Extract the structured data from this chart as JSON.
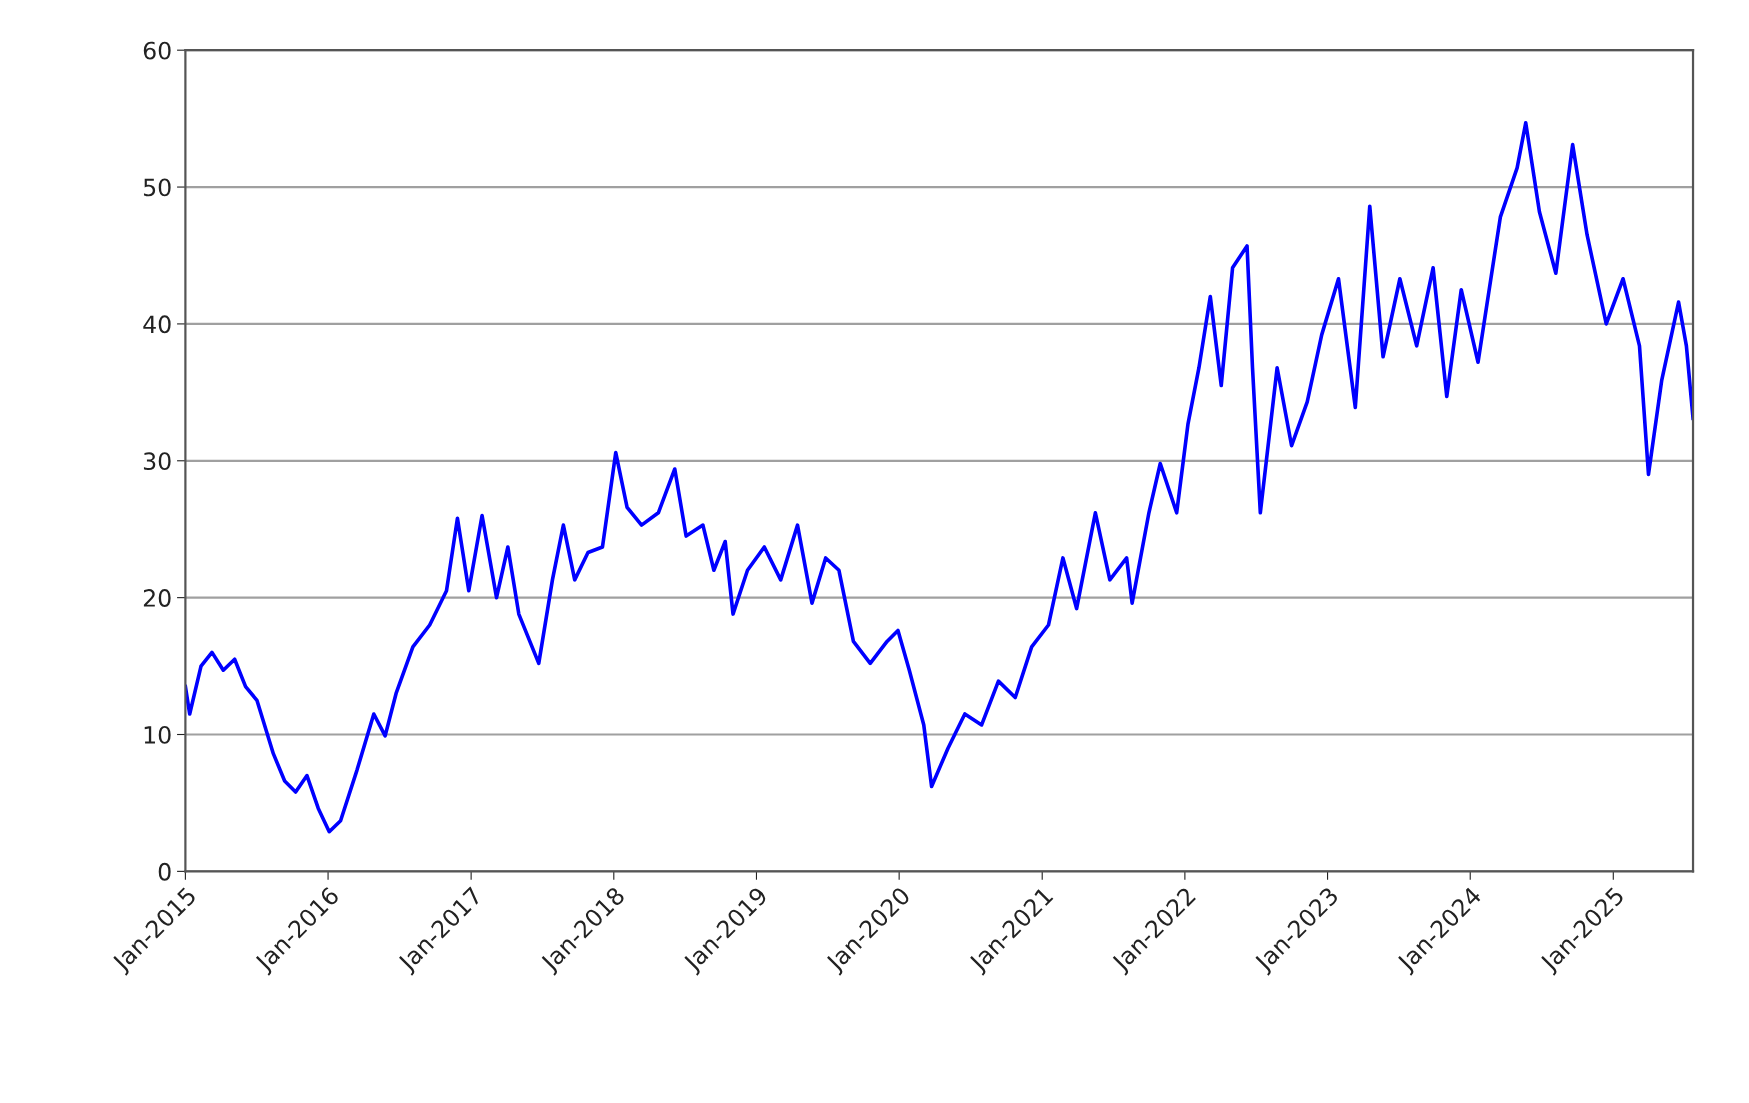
{
  "chart_data": {
    "type": "line",
    "x": [
      "2015-01-01",
      "2015-01-12",
      "2015-02-10",
      "2015-03-10",
      "2015-04-08",
      "2015-05-07",
      "2015-06-04",
      "2015-07-03",
      "2015-08-14",
      "2015-09-12",
      "2015-10-10",
      "2015-11-08",
      "2015-12-07",
      "2016-01-04",
      "2016-02-02",
      "2016-03-15",
      "2016-04-27",
      "2016-05-26",
      "2016-06-23",
      "2016-08-05",
      "2016-09-17",
      "2016-10-30",
      "2016-11-27",
      "2016-12-26",
      "2017-01-29",
      "2017-03-07",
      "2017-04-05",
      "2017-05-03",
      "2017-06-23",
      "2017-07-28",
      "2017-08-25",
      "2017-09-23",
      "2017-10-27",
      "2017-12-03",
      "2018-01-06",
      "2018-02-04",
      "2018-03-13",
      "2018-04-25",
      "2018-06-06",
      "2018-07-05",
      "2018-08-17",
      "2018-09-14",
      "2018-10-13",
      "2018-11-02",
      "2018-12-09",
      "2019-01-21",
      "2019-03-04",
      "2019-04-16",
      "2019-05-23",
      "2019-06-27",
      "2019-07-31",
      "2019-09-06",
      "2019-10-19",
      "2019-12-01",
      "2019-12-29",
      "2020-01-27",
      "2020-03-04",
      "2020-03-24",
      "2020-05-05",
      "2020-06-17",
      "2020-07-30",
      "2020-09-11",
      "2020-10-24",
      "2020-12-05",
      "2021-01-17",
      "2021-02-23",
      "2021-03-30",
      "2021-05-17",
      "2021-06-23",
      "2021-08-05",
      "2021-08-19",
      "2021-10-01",
      "2021-10-30",
      "2021-12-11",
      "2022-01-09",
      "2022-02-06",
      "2022-03-07",
      "2022-04-04",
      "2022-05-03",
      "2022-06-09",
      "2022-06-23",
      "2022-07-13",
      "2022-08-25",
      "2022-10-01",
      "2022-11-10",
      "2022-12-17",
      "2023-01-29",
      "2023-03-13",
      "2023-04-19",
      "2023-05-23",
      "2023-07-05",
      "2023-08-17",
      "2023-09-28",
      "2023-11-02",
      "2023-12-09",
      "2024-01-21",
      "2024-03-18",
      "2024-04-30",
      "2024-05-22",
      "2024-06-26",
      "2024-08-07",
      "2024-09-19",
      "2024-10-26",
      "2024-12-14",
      "2025-01-26",
      "2025-03-09",
      "2025-04-01",
      "2025-05-05",
      "2025-06-17",
      "2025-07-07",
      "2025-07-24"
    ],
    "series": [
      {
        "color": "#0000ff",
        "values": [
          13.5,
          11.5,
          15,
          16,
          14.7,
          15.5,
          13.5,
          12.5,
          8.6,
          6.6,
          5.8,
          7,
          4.6,
          2.9,
          3.7,
          7.4,
          11.5,
          9.9,
          13,
          16.4,
          18,
          20.5,
          25.8,
          20.5,
          26,
          20,
          23.7,
          18.8,
          15.2,
          21.3,
          25.3,
          21.3,
          23.3,
          23.7,
          30.6,
          26.6,
          25.3,
          26.2,
          29.4,
          24.5,
          25.3,
          22,
          24.1,
          18.8,
          22,
          23.7,
          21.3,
          25.3,
          19.6,
          22.9,
          22,
          16.8,
          15.2,
          16.8,
          17.6,
          14.7,
          10.7,
          6.2,
          9,
          11.5,
          10.7,
          13.9,
          12.7,
          16.4,
          18,
          22.9,
          19.2,
          26.2,
          21.3,
          22.9,
          19.6,
          26.2,
          29.8,
          26.2,
          32.7,
          36.8,
          42,
          35.5,
          44.1,
          45.7,
          36.8,
          26.2,
          36.8,
          31.1,
          34.3,
          39.2,
          43.3,
          33.9,
          48.6,
          37.6,
          43.3,
          38.4,
          44.1,
          34.7,
          42.5,
          37.2,
          47.8,
          51.4,
          54.7,
          48.2,
          43.7,
          53.1,
          46.5,
          40,
          43.3,
          38.4,
          29,
          35.9,
          41.6,
          38.4,
          33.1
        ]
      }
    ],
    "xlim": [
      "2015-01-01",
      "2025-07-24"
    ],
    "xticks": [
      {
        "value": "2015-01-01",
        "label": "Jan-2015"
      },
      {
        "value": "2016-01-01",
        "label": "Jan-2016"
      },
      {
        "value": "2017-01-01",
        "label": "Jan-2017"
      },
      {
        "value": "2018-01-01",
        "label": "Jan-2018"
      },
      {
        "value": "2019-01-01",
        "label": "Jan-2019"
      },
      {
        "value": "2020-01-01",
        "label": "Jan-2020"
      },
      {
        "value": "2021-01-01",
        "label": "Jan-2021"
      },
      {
        "value": "2022-01-01",
        "label": "Jan-2022"
      },
      {
        "value": "2023-01-01",
        "label": "Jan-2023"
      },
      {
        "value": "2024-01-01",
        "label": "Jan-2024"
      },
      {
        "value": "2025-01-01",
        "label": "Jan-2025"
      }
    ],
    "ylim": [
      0,
      60
    ],
    "yticks": [
      0,
      10,
      20,
      30,
      40,
      50,
      60
    ],
    "grid": "y",
    "legend": false,
    "marker": "none",
    "line_style": "solid"
  }
}
